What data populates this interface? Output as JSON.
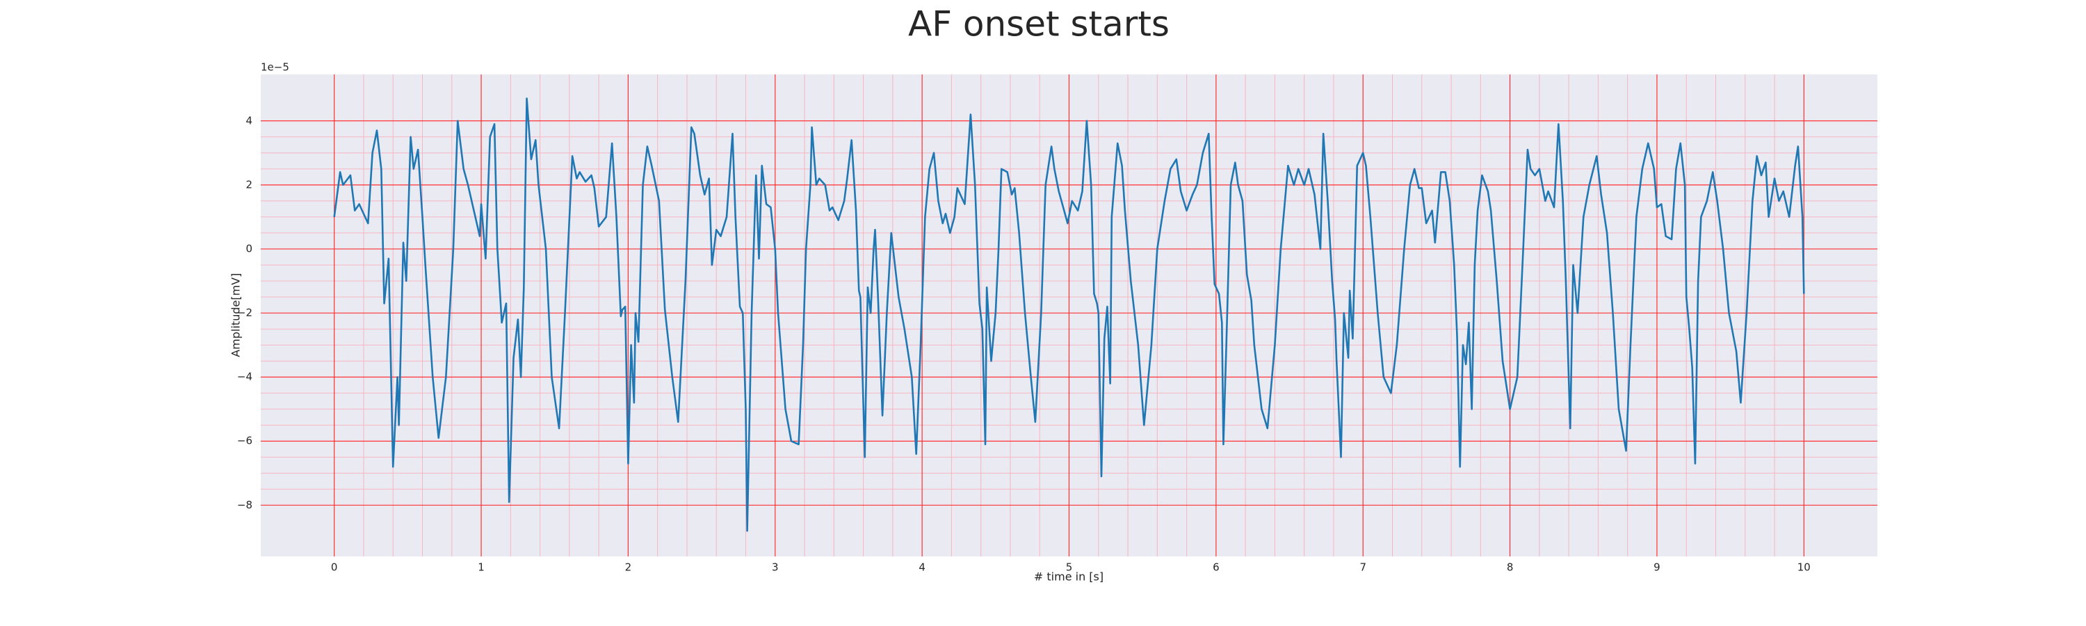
{
  "chart_data": {
    "type": "line",
    "title": "AF onset starts",
    "xlabel": "# time in [s]",
    "ylabel": "Amplitude[mV]",
    "y_offset_label": "1e−5",
    "color": "#1f77b4",
    "grid": true,
    "minor_grid": true,
    "grid_color": "#ff3030",
    "minor_grid_color": "#f7b5c0",
    "background": "#eaeaf2",
    "xlim": [
      -0.5,
      10.5
    ],
    "ylim": [
      -9.6,
      5.45
    ],
    "xticks": [
      0,
      1,
      2,
      3,
      4,
      5,
      6,
      7,
      8,
      9,
      10
    ],
    "yticks": [
      {
        "value": -8,
        "label": "−8"
      },
      {
        "value": -6,
        "label": "−6"
      },
      {
        "value": -4,
        "label": "−4"
      },
      {
        "value": -2,
        "label": "−2"
      },
      0,
      2,
      4
    ],
    "x": [
      0,
      0.04,
      0.06,
      0.11,
      0.14,
      0.17,
      0.23,
      0.26,
      0.29,
      0.32,
      0.34,
      0.37,
      0.4,
      0.43,
      0.44,
      0.47,
      0.49,
      0.52,
      0.54,
      0.57,
      0.6,
      0.62,
      0.67,
      0.71,
      0.76,
      0.81,
      0.84,
      0.88,
      0.91,
      0.96,
      0.99,
      1.0,
      1.03,
      1.06,
      1.09,
      1.11,
      1.14,
      1.17,
      1.19,
      1.22,
      1.25,
      1.27,
      1.29,
      1.31,
      1.34,
      1.37,
      1.39,
      1.44,
      1.48,
      1.53,
      1.57,
      1.62,
      1.65,
      1.67,
      1.71,
      1.75,
      1.77,
      1.8,
      1.85,
      1.89,
      1.92,
      1.95,
      1.96,
      1.98,
      2.0,
      2.02,
      2.04,
      2.05,
      2.07,
      2.1,
      2.13,
      2.16,
      2.21,
      2.25,
      2.3,
      2.34,
      2.39,
      2.43,
      2.45,
      2.49,
      2.52,
      2.55,
      2.57,
      2.6,
      2.63,
      2.67,
      2.71,
      2.73,
      2.76,
      2.78,
      2.8,
      2.81,
      2.84,
      2.87,
      2.89,
      2.91,
      2.94,
      2.97,
      3.0,
      3.02,
      3.07,
      3.11,
      3.16,
      3.19,
      3.21,
      3.24,
      3.25,
      3.28,
      3.3,
      3.34,
      3.37,
      3.39,
      3.43,
      3.47,
      3.49,
      3.52,
      3.55,
      3.57,
      3.58,
      3.61,
      3.63,
      3.65,
      3.67,
      3.68,
      3.7,
      3.73,
      3.76,
      3.79,
      3.84,
      3.88,
      3.93,
      3.96,
      3.99,
      4.02,
      4.05,
      4.08,
      4.11,
      4.14,
      4.16,
      4.19,
      4.22,
      4.24,
      4.29,
      4.33,
      4.36,
      4.39,
      4.41,
      4.43,
      4.44,
      4.47,
      4.5,
      4.52,
      4.54,
      4.58,
      4.61,
      4.63,
      4.66,
      4.7,
      4.74,
      4.77,
      4.81,
      4.84,
      4.88,
      4.9,
      4.93,
      4.96,
      4.99,
      5.02,
      5.06,
      5.09,
      5.12,
      5.15,
      5.17,
      5.19,
      5.2,
      5.22,
      5.24,
      5.26,
      5.28,
      5.29,
      5.33,
      5.36,
      5.38,
      5.42,
      5.47,
      5.51,
      5.56,
      5.6,
      5.65,
      5.69,
      5.73,
      5.76,
      5.8,
      5.84,
      5.87,
      5.91,
      5.95,
      5.97,
      5.99,
      6.02,
      6.04,
      6.05,
      6.07,
      6.1,
      6.13,
      6.15,
      6.18,
      6.21,
      6.24,
      6.26,
      6.31,
      6.35,
      6.4,
      6.44,
      6.49,
      6.53,
      6.56,
      6.6,
      6.63,
      6.67,
      6.71,
      6.73,
      6.76,
      6.79,
      6.81,
      6.82,
      6.85,
      6.87,
      6.9,
      6.91,
      6.93,
      6.96,
      7.0,
      7.02,
      7.05,
      7.1,
      7.14,
      7.19,
      7.23,
      7.28,
      7.32,
      7.35,
      7.38,
      7.4,
      7.43,
      7.47,
      7.49,
      7.53,
      7.56,
      7.59,
      7.62,
      7.64,
      7.66,
      7.68,
      7.7,
      7.72,
      7.74,
      7.76,
      7.78,
      7.81,
      7.85,
      7.87,
      7.91,
      7.95,
      8.0,
      8.05,
      8.09,
      8.12,
      8.14,
      8.17,
      8.2,
      8.24,
      8.26,
      8.3,
      8.33,
      8.36,
      8.38,
      8.41,
      8.43,
      8.46,
      8.5,
      8.54,
      8.59,
      8.62,
      8.66,
      8.7,
      8.74,
      8.79,
      8.82,
      8.86,
      8.9,
      8.94,
      8.98,
      9.0,
      9.03,
      9.06,
      9.1,
      9.13,
      9.16,
      9.19,
      9.2,
      9.22,
      9.24,
      9.26,
      9.28,
      9.3,
      9.34,
      9.38,
      9.41,
      9.45,
      9.49,
      9.54,
      9.57,
      9.61,
      9.65,
      9.68,
      9.71,
      9.74,
      9.76,
      9.8,
      9.83,
      9.86,
      9.9,
      9.94,
      9.96,
      9.99,
      10.0
    ],
    "values": [
      1.0,
      2.4,
      2.0,
      2.3,
      1.2,
      1.4,
      0.8,
      3.0,
      3.7,
      2.5,
      -1.7,
      -0.3,
      -6.8,
      -4.0,
      -5.5,
      0.2,
      -1.0,
      3.5,
      2.5,
      3.1,
      1.0,
      -0.5,
      -4,
      -5.9,
      -4,
      0,
      4.0,
      2.5,
      2,
      1,
      0.4,
      1.4,
      -0.3,
      3.5,
      3.9,
      0,
      -2.3,
      -1.7,
      -7.9,
      -3.4,
      -2.2,
      -4,
      -1.2,
      4.7,
      2.8,
      3.4,
      2,
      0,
      -4,
      -5.6,
      -2,
      2.9,
      2.2,
      2.4,
      2.1,
      2.3,
      1.9,
      0.7,
      1,
      3.3,
      1,
      -2.1,
      -1.9,
      -1.8,
      -6.7,
      -3,
      -4.8,
      -2,
      -2.9,
      2,
      3.2,
      2.6,
      1.5,
      -1.9,
      -4,
      -5.4,
      -1,
      3.8,
      3.6,
      2.3,
      1.7,
      2.2,
      -0.5,
      0.6,
      0.4,
      1,
      3.6,
      1,
      -1.8,
      -2.0,
      -5,
      -8.8,
      -2,
      2.3,
      -0.3,
      2.6,
      1.4,
      1.3,
      0,
      -2,
      -5,
      -6,
      -6.1,
      -3,
      0,
      2,
      3.8,
      2,
      2.2,
      2.0,
      1.2,
      1.3,
      0.9,
      1.5,
      2.2,
      3.4,
      1.2,
      -1.3,
      -1.5,
      -6.5,
      -1.2,
      -2.0,
      0,
      0.6,
      -1.5,
      -5.2,
      -2,
      0.5,
      -1.5,
      -2.5,
      -4,
      -6.4,
      -3,
      1,
      2.5,
      3,
      1.5,
      0.8,
      1.1,
      0.5,
      1,
      1.9,
      1.4,
      4.2,
      2,
      -1.7,
      -2.5,
      -6.1,
      -1.2,
      -3.5,
      -2,
      0,
      2.5,
      2.4,
      1.7,
      1.9,
      0.5,
      -2,
      -4,
      -5.4,
      -2,
      2,
      3.2,
      2.5,
      1.8,
      1.3,
      0.8,
      1.5,
      1.2,
      1.8,
      4.0,
      2,
      -1.4,
      -1.7,
      -2.0,
      -7.1,
      -2.8,
      -1.8,
      -4.2,
      1,
      3.3,
      2.6,
      1.2,
      -1,
      -3,
      -5.5,
      -3,
      0,
      1.5,
      2.5,
      2.8,
      1.8,
      1.2,
      1.7,
      2,
      3,
      3.6,
      1,
      -1.1,
      -1.4,
      -2.3,
      -6.1,
      -3,
      2.0,
      2.7,
      2,
      1.5,
      -0.8,
      -1.6,
      -3,
      -5,
      -5.6,
      -3,
      0,
      2.6,
      2.0,
      2.5,
      2.0,
      2.5,
      1.7,
      0,
      3.6,
      1.5,
      -1,
      -2.2,
      -3.5,
      -6.5,
      -2,
      -3.4,
      -1.3,
      -2.8,
      2.6,
      3,
      2.6,
      1,
      -2,
      -4,
      -4.5,
      -3,
      0,
      2,
      2.5,
      1.9,
      1.9,
      0.8,
      1.2,
      0.2,
      2.4,
      2.4,
      1.5,
      -0.5,
      -2.7,
      -6.8,
      -3,
      -3.6,
      -2.3,
      -5,
      -0.5,
      1.2,
      2.3,
      1.8,
      1.2,
      -1,
      -3.5,
      -5,
      -4,
      0,
      3.1,
      2.5,
      2.3,
      2.5,
      1.5,
      1.8,
      1.3,
      3.9,
      1.5,
      -1,
      -5.6,
      -0.5,
      -2,
      1,
      2,
      2.9,
      1.7,
      0.5,
      -2,
      -5,
      -6.3,
      -3,
      1,
      2.5,
      3.3,
      2.5,
      1.3,
      1.4,
      0.4,
      0.3,
      2.5,
      3.3,
      2,
      -1.5,
      -2.5,
      -3.7,
      -6.7,
      -1,
      1,
      1.5,
      2.4,
      1.5,
      0,
      -2,
      -3.2,
      -4.8,
      -2,
      1.5,
      2.9,
      2.3,
      2.7,
      1,
      2.2,
      1.5,
      1.8,
      1,
      2.6,
      3.2,
      1,
      -1.4
    ]
  }
}
